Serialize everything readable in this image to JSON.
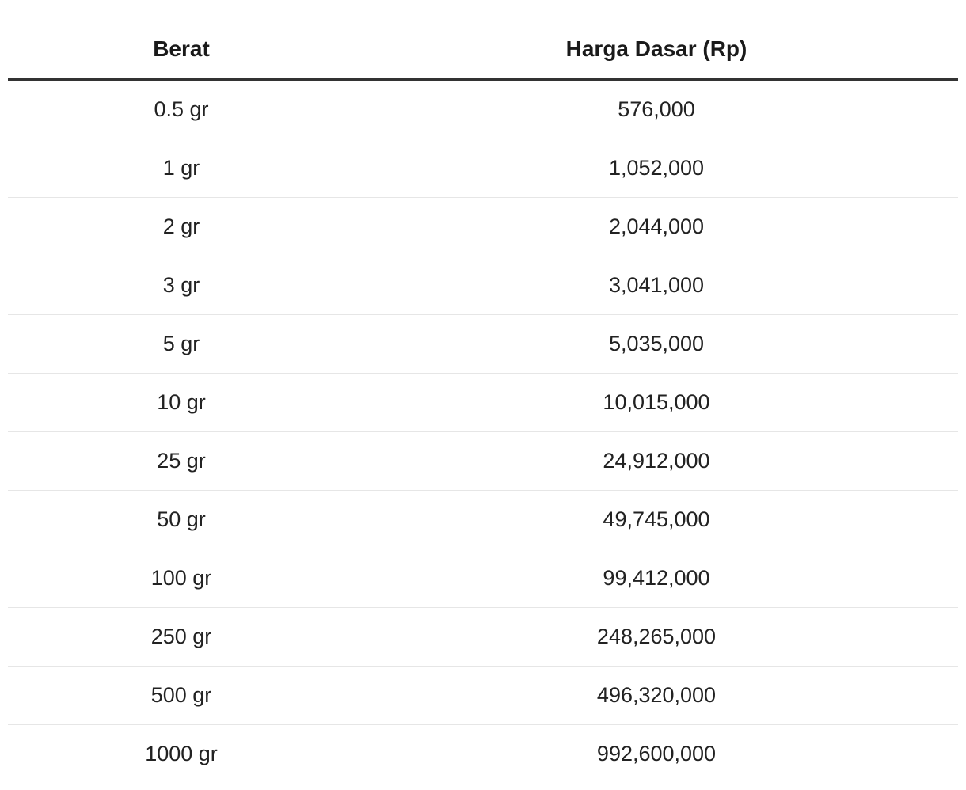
{
  "table": {
    "headers": [
      "Berat",
      "Harga Dasar (Rp)"
    ],
    "rows": [
      [
        "0.5 gr",
        "576,000"
      ],
      [
        "1 gr",
        "1,052,000"
      ],
      [
        "2 gr",
        "2,044,000"
      ],
      [
        "3 gr",
        "3,041,000"
      ],
      [
        "5 gr",
        "5,035,000"
      ],
      [
        "10 gr",
        "10,015,000"
      ],
      [
        "25 gr",
        "24,912,000"
      ],
      [
        "50 gr",
        "49,745,000"
      ],
      [
        "100 gr",
        "99,412,000"
      ],
      [
        "250 gr",
        "248,265,000"
      ],
      [
        "500 gr",
        "496,320,000"
      ],
      [
        "1000 gr",
        "992,600,000"
      ]
    ]
  }
}
